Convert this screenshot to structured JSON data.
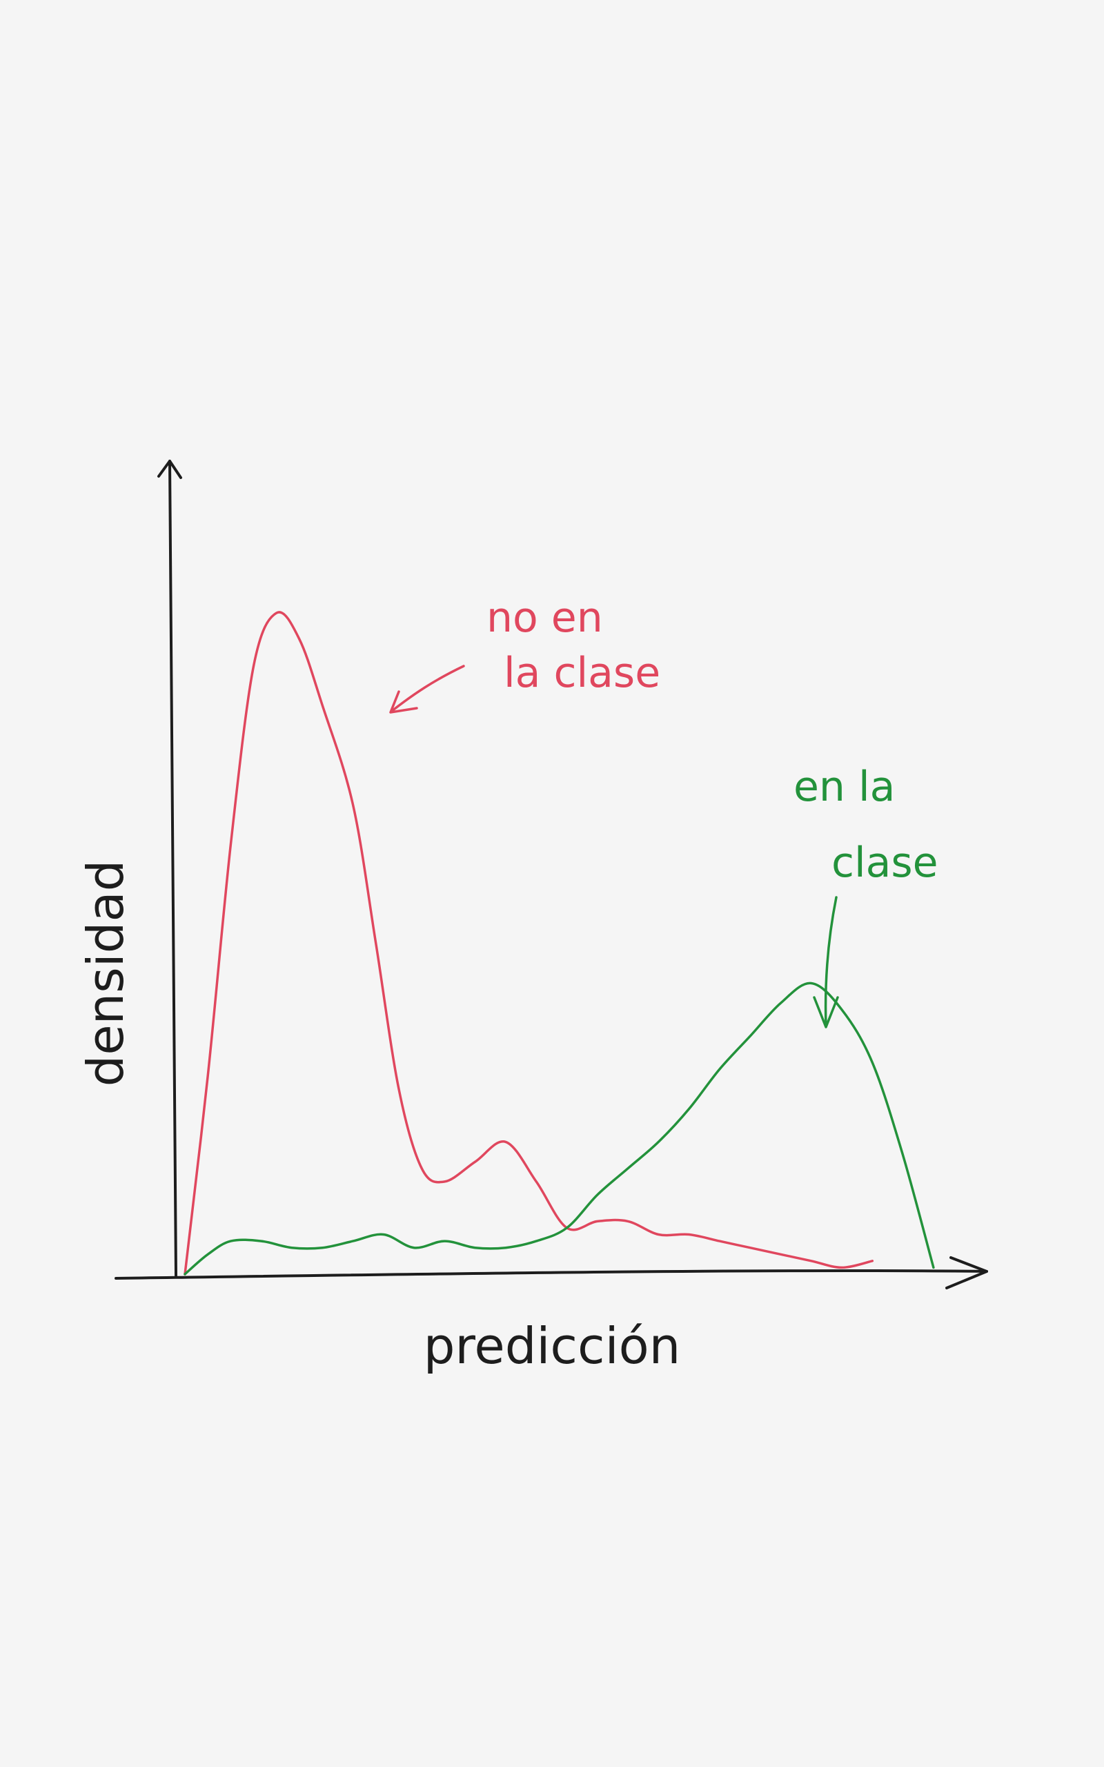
{
  "chart_data": {
    "type": "line",
    "title": "",
    "xlabel": "predicción",
    "ylabel": "densidad",
    "xlim": [
      0,
      1
    ],
    "ylim": [
      0,
      1.1
    ],
    "grid": false,
    "legend": "none",
    "series": [
      {
        "name": "no en la clase",
        "color": "#e0475e",
        "x": [
          0.0,
          0.03,
          0.06,
          0.09,
          0.12,
          0.15,
          0.18,
          0.22,
          0.25,
          0.28,
          0.31,
          0.34,
          0.38,
          0.42,
          0.46,
          0.5,
          0.54,
          0.58,
          0.62,
          0.66,
          0.7,
          0.74,
          0.78,
          0.82,
          0.86,
          0.9
        ],
        "y": [
          0.0,
          0.3,
          0.65,
          0.92,
          1.0,
          0.96,
          0.86,
          0.71,
          0.5,
          0.28,
          0.16,
          0.14,
          0.17,
          0.2,
          0.14,
          0.07,
          0.08,
          0.08,
          0.06,
          0.06,
          0.05,
          0.04,
          0.03,
          0.02,
          0.01,
          0.02
        ]
      },
      {
        "name": "en la clase",
        "color": "#23923b",
        "x": [
          0.0,
          0.03,
          0.06,
          0.1,
          0.14,
          0.18,
          0.22,
          0.26,
          0.3,
          0.34,
          0.38,
          0.42,
          0.46,
          0.5,
          0.54,
          0.58,
          0.62,
          0.66,
          0.7,
          0.74,
          0.78,
          0.82,
          0.86,
          0.9,
          0.94,
          0.98
        ],
        "y": [
          0.0,
          0.03,
          0.05,
          0.05,
          0.04,
          0.04,
          0.05,
          0.06,
          0.04,
          0.05,
          0.04,
          0.04,
          0.05,
          0.07,
          0.12,
          0.16,
          0.2,
          0.25,
          0.31,
          0.36,
          0.41,
          0.44,
          0.4,
          0.32,
          0.18,
          0.01
        ]
      }
    ]
  },
  "annotations": {
    "red_label_line1": "no en",
    "red_label_line2": "la clase",
    "green_label_line1": "en la",
    "green_label_line2": "clase"
  }
}
